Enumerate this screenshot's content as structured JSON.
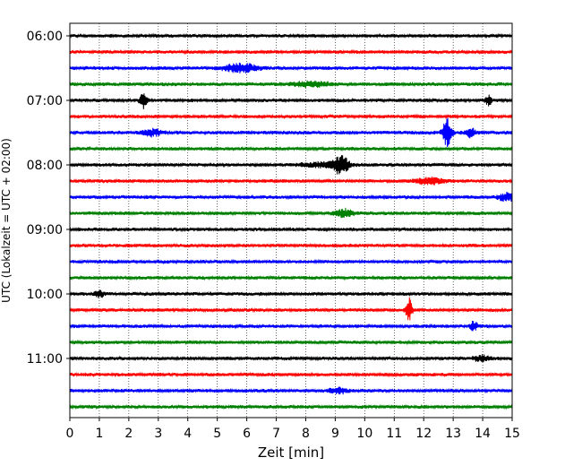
{
  "chart_data": {
    "type": "line",
    "title": "",
    "xlabel": "Zeit  [min]",
    "ylabel": "UTC (Lokalzeit = UTC + 02:00)",
    "xlim": [
      0,
      15
    ],
    "x_ticks": [
      "0",
      "1",
      "2",
      "3",
      "4",
      "5",
      "6",
      "7",
      "8",
      "9",
      "10",
      "11",
      "12",
      "13",
      "14",
      "15"
    ],
    "y_tick_labels": [
      "06:00",
      "07:00",
      "08:00",
      "09:00",
      "10:00",
      "11:00"
    ],
    "grid": "vertical dotted",
    "trace_interval_min": 15,
    "trace_colors": [
      "#000000",
      "#ff0000",
      "#0000ff",
      "#008000"
    ],
    "traces": [
      {
        "start": "06:00",
        "color": "#000000",
        "amplitude": 1.0,
        "events": []
      },
      {
        "start": "06:15",
        "color": "#ff0000",
        "amplitude": 1.0,
        "events": []
      },
      {
        "start": "06:30",
        "color": "#0000ff",
        "amplitude": 1.1,
        "events": [
          {
            "t": 5.8,
            "amp": 3.0,
            "dur": 0.5
          }
        ]
      },
      {
        "start": "06:45",
        "color": "#008000",
        "amplitude": 1.1,
        "events": [
          {
            "t": 8.2,
            "amp": 1.6,
            "dur": 0.6
          }
        ]
      },
      {
        "start": "07:00",
        "color": "#000000",
        "amplitude": 1.0,
        "events": [
          {
            "t": 2.5,
            "amp": 5.0,
            "dur": 0.12
          },
          {
            "t": 14.2,
            "amp": 3.5,
            "dur": 0.1
          }
        ]
      },
      {
        "start": "07:15",
        "color": "#ff0000",
        "amplitude": 1.0,
        "events": []
      },
      {
        "start": "07:30",
        "color": "#0000ff",
        "amplitude": 1.1,
        "events": [
          {
            "t": 2.8,
            "amp": 2.2,
            "dur": 0.3
          },
          {
            "t": 12.8,
            "amp": 9.0,
            "dur": 0.15
          },
          {
            "t": 13.6,
            "amp": 3.0,
            "dur": 0.15
          }
        ]
      },
      {
        "start": "07:45",
        "color": "#008000",
        "amplitude": 1.0,
        "events": []
      },
      {
        "start": "08:00",
        "color": "#000000",
        "amplitude": 1.0,
        "events": [
          {
            "t": 9.2,
            "amp": 6.0,
            "dur": 0.25
          },
          {
            "t": 8.6,
            "amp": 1.5,
            "dur": 0.7
          }
        ]
      },
      {
        "start": "08:15",
        "color": "#ff0000",
        "amplitude": 1.0,
        "events": [
          {
            "t": 12.2,
            "amp": 2.0,
            "dur": 0.5
          }
        ]
      },
      {
        "start": "08:30",
        "color": "#0000ff",
        "amplitude": 1.0,
        "events": [
          {
            "t": 14.8,
            "amp": 2.5,
            "dur": 0.3
          }
        ]
      },
      {
        "start": "08:45",
        "color": "#008000",
        "amplitude": 1.0,
        "events": [
          {
            "t": 9.3,
            "amp": 2.5,
            "dur": 0.3
          }
        ]
      },
      {
        "start": "09:00",
        "color": "#000000",
        "amplitude": 1.0,
        "events": []
      },
      {
        "start": "09:15",
        "color": "#ff0000",
        "amplitude": 1.0,
        "events": []
      },
      {
        "start": "09:30",
        "color": "#0000ff",
        "amplitude": 1.0,
        "events": []
      },
      {
        "start": "09:45",
        "color": "#008000",
        "amplitude": 1.0,
        "events": []
      },
      {
        "start": "10:00",
        "color": "#000000",
        "amplitude": 1.0,
        "events": [
          {
            "t": 1.0,
            "amp": 2.2,
            "dur": 0.15
          }
        ]
      },
      {
        "start": "10:15",
        "color": "#ff0000",
        "amplitude": 1.0,
        "events": [
          {
            "t": 11.5,
            "amp": 8.0,
            "dur": 0.1
          }
        ]
      },
      {
        "start": "10:30",
        "color": "#0000ff",
        "amplitude": 1.0,
        "events": [
          {
            "t": 13.7,
            "amp": 3.0,
            "dur": 0.12
          }
        ]
      },
      {
        "start": "10:45",
        "color": "#008000",
        "amplitude": 1.0,
        "events": []
      },
      {
        "start": "11:00",
        "color": "#000000",
        "amplitude": 1.0,
        "events": [
          {
            "t": 14.0,
            "amp": 1.8,
            "dur": 0.3
          }
        ]
      },
      {
        "start": "11:15",
        "color": "#ff0000",
        "amplitude": 1.0,
        "events": []
      },
      {
        "start": "11:30",
        "color": "#0000ff",
        "amplitude": 1.0,
        "events": [
          {
            "t": 9.1,
            "amp": 1.8,
            "dur": 0.3
          }
        ]
      },
      {
        "start": "11:45",
        "color": "#008000",
        "amplitude": 1.0,
        "events": []
      }
    ]
  }
}
